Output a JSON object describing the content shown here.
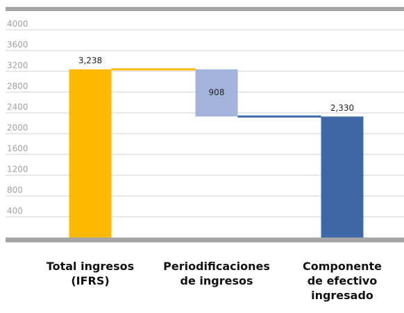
{
  "chart_data": {
    "type": "waterfall",
    "categories": [
      "Total ingresos\n(IFRS)",
      "Periodificaciones\nde ingresos",
      "Componente\nde efectivo\ningresado"
    ],
    "values": [
      3238,
      908,
      2330
    ],
    "value_labels": [
      "3,238",
      "908",
      "2,330"
    ],
    "measures": [
      "total",
      "decrease",
      "total"
    ],
    "colors": [
      "#fbb900",
      "#a3b3db",
      "#3e68a6"
    ],
    "ylim": [
      0,
      4400
    ],
    "yticks": [
      400,
      800,
      1200,
      1600,
      2000,
      2400,
      2800,
      3200,
      3600,
      4000
    ],
    "grid": true
  }
}
